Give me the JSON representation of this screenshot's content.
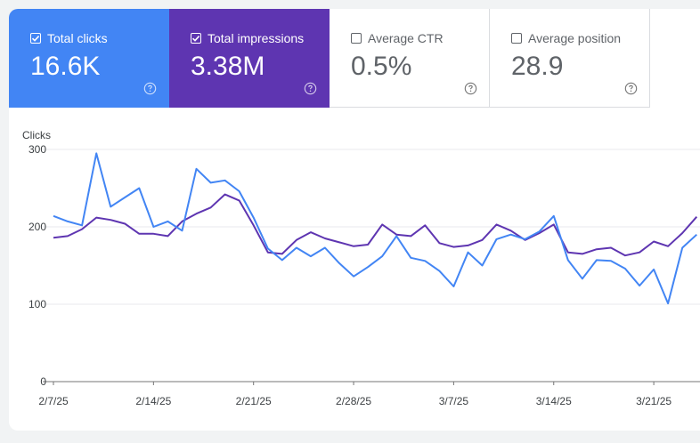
{
  "metrics": [
    {
      "label": "Total clicks",
      "value": "16.6K",
      "checked": true
    },
    {
      "label": "Total impressions",
      "value": "3.38M",
      "checked": true
    },
    {
      "label": "Average CTR",
      "value": "0.5%",
      "checked": false
    },
    {
      "label": "Average position",
      "value": "28.9",
      "checked": false
    }
  ],
  "icons": {
    "checkbox": "checkbox-icon",
    "help": "help-circle-icon"
  },
  "colors": {
    "clicks": "#4285f4",
    "impressions": "#5e35b1"
  },
  "chart_data": {
    "type": "line",
    "ylabel": "Clicks",
    "ylim": [
      0,
      300
    ],
    "yticks": [
      0,
      100,
      200,
      300
    ],
    "xticks": [
      "2/7/25",
      "2/14/25",
      "2/21/25",
      "2/28/25",
      "3/7/25",
      "3/14/25",
      "3/21/25"
    ],
    "x_start": "2025-02-07",
    "grid": true,
    "series": [
      {
        "name": "Total clicks",
        "values": [
          214,
          207,
          202,
          295,
          226,
          238,
          250,
          200,
          207,
          195,
          275,
          257,
          260,
          246,
          212,
          172,
          157,
          173,
          162,
          173,
          153,
          136,
          148,
          162,
          188,
          160,
          156,
          143,
          123,
          167,
          150,
          184,
          190,
          184,
          194,
          214,
          157,
          133,
          157,
          156,
          146,
          124,
          145,
          101,
          173,
          190
        ]
      },
      {
        "name": "Total impressions",
        "values": [
          186,
          188,
          197,
          212,
          209,
          204,
          191,
          191,
          188,
          207,
          217,
          225,
          242,
          234,
          202,
          167,
          165,
          183,
          193,
          185,
          180,
          175,
          177,
          203,
          190,
          188,
          202,
          179,
          174,
          176,
          183,
          203,
          195,
          183,
          192,
          203,
          167,
          165,
          171,
          173,
          163,
          167,
          181,
          175,
          192,
          213
        ]
      }
    ]
  }
}
